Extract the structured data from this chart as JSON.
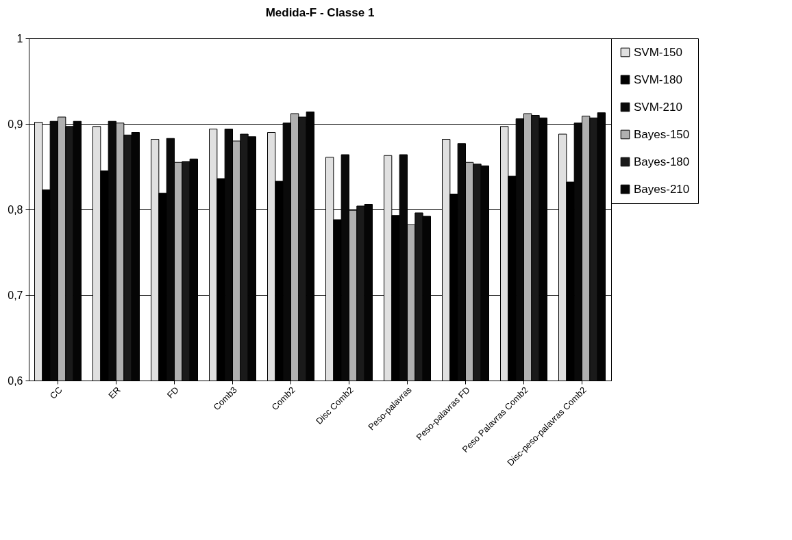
{
  "chart_data": {
    "type": "bar",
    "title": "Medida-F -  Classe 1",
    "categories": [
      "CC",
      "ER",
      "FD",
      "Comb3",
      "Comb2",
      "Disc Comb2",
      "Peso-palavras",
      "Peso-palavras FD",
      "Peso Palavras Comb2",
      "Disc-peso-palavras Comb2"
    ],
    "series": [
      {
        "name": "SVM-150",
        "color": "#e0e0e0",
        "values": [
          0.902,
          0.897,
          0.882,
          0.894,
          0.89,
          0.861,
          0.863,
          0.882,
          0.897,
          0.888
        ]
      },
      {
        "name": "SVM-180",
        "color": "#000000",
        "values": [
          0.823,
          0.845,
          0.819,
          0.836,
          0.833,
          0.788,
          0.793,
          0.818,
          0.839,
          0.832
        ]
      },
      {
        "name": "SVM-210",
        "color": "#0a0a0a",
        "values": [
          0.903,
          0.903,
          0.883,
          0.894,
          0.901,
          0.864,
          0.864,
          0.877,
          0.906,
          0.901
        ]
      },
      {
        "name": "Bayes-150",
        "color": "#b0b0b0",
        "values": [
          0.908,
          0.901,
          0.855,
          0.88,
          0.912,
          0.799,
          0.782,
          0.855,
          0.912,
          0.909
        ]
      },
      {
        "name": "Bayes-180",
        "color": "#1a1a1a",
        "values": [
          0.897,
          0.887,
          0.856,
          0.888,
          0.908,
          0.804,
          0.796,
          0.853,
          0.91,
          0.907
        ]
      },
      {
        "name": "Bayes-210",
        "color": "#050505",
        "values": [
          0.903,
          0.89,
          0.859,
          0.885,
          0.914,
          0.806,
          0.792,
          0.851,
          0.907,
          0.913
        ]
      }
    ],
    "ylim": [
      0.6,
      1
    ],
    "yticks": [
      {
        "value": 0.6,
        "label": "0,6"
      },
      {
        "value": 0.7,
        "label": "0,7"
      },
      {
        "value": 0.8,
        "label": "0,8"
      },
      {
        "value": 0.9,
        "label": "0,9"
      },
      1
    ],
    "grid": "y",
    "legend": "right"
  }
}
